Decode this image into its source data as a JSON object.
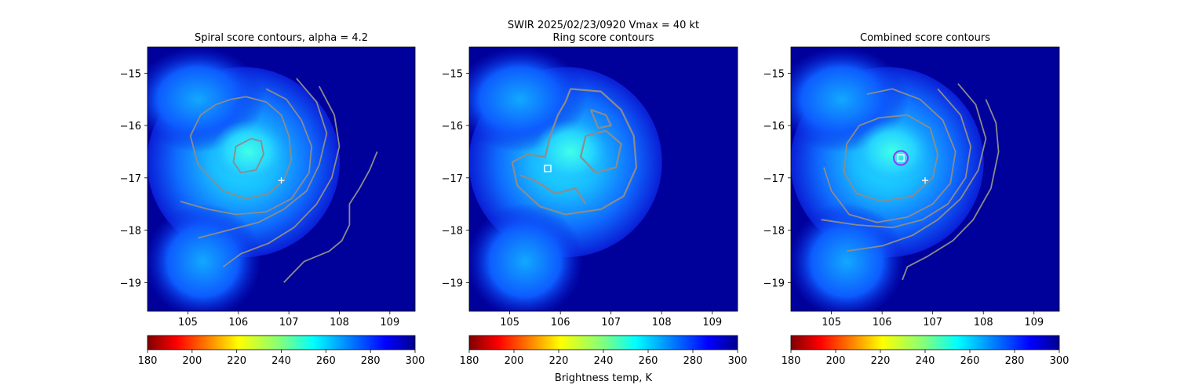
{
  "figure": {
    "suptitle_line1": "SWIR  2025/02/23/0920    Vmax = 40 kt",
    "colorbar_label": "Brightness temp, K"
  },
  "colors": {
    "contour": "#8c8c8c",
    "background_sea": "#00009a",
    "marker_white": "#ffffff",
    "combined_circle": "#9b30ff"
  },
  "colorbar": {
    "colormap": "jet_reversed",
    "ticks": [
      180,
      200,
      220,
      240,
      260,
      280,
      300
    ],
    "range": [
      180,
      300
    ]
  },
  "chart_data": [
    {
      "type": "heatmap",
      "title": "Spiral score contours, alpha =  4.2",
      "xlim": [
        104.2,
        109.5
      ],
      "ylim": [
        -19.55,
        -14.5
      ],
      "xticks": [
        105,
        106,
        107,
        108,
        109
      ],
      "yticks": [
        -15,
        -16,
        -17,
        -18,
        -19
      ],
      "markers": [
        {
          "kind": "cross",
          "x": 106.85,
          "y": -17.05
        }
      ],
      "contours": [
        [
          [
            106.25,
            -16.25
          ],
          [
            106.45,
            -16.3
          ],
          [
            106.5,
            -16.55
          ],
          [
            106.35,
            -16.85
          ],
          [
            106.05,
            -16.9
          ],
          [
            105.9,
            -16.7
          ],
          [
            105.95,
            -16.4
          ],
          [
            106.25,
            -16.25
          ]
        ],
        [
          [
            105.85,
            -15.5
          ],
          [
            106.15,
            -15.45
          ],
          [
            106.55,
            -15.55
          ],
          [
            106.85,
            -15.8
          ],
          [
            107.0,
            -16.2
          ],
          [
            107.05,
            -16.65
          ],
          [
            106.9,
            -17.05
          ],
          [
            106.6,
            -17.3
          ],
          [
            106.15,
            -17.4
          ],
          [
            105.7,
            -17.25
          ],
          [
            105.2,
            -16.75
          ],
          [
            105.05,
            -16.2
          ],
          [
            105.25,
            -15.8
          ],
          [
            105.55,
            -15.6
          ],
          [
            105.85,
            -15.5
          ]
        ],
        [
          [
            104.85,
            -17.45
          ],
          [
            105.4,
            -17.6
          ],
          [
            105.95,
            -17.7
          ],
          [
            106.55,
            -17.65
          ],
          [
            107.05,
            -17.4
          ],
          [
            107.4,
            -16.9
          ],
          [
            107.45,
            -16.4
          ],
          [
            107.25,
            -15.9
          ],
          [
            106.95,
            -15.5
          ],
          [
            106.55,
            -15.3
          ]
        ],
        [
          [
            105.2,
            -18.15
          ],
          [
            105.8,
            -18.0
          ],
          [
            106.4,
            -17.85
          ],
          [
            106.9,
            -17.6
          ],
          [
            107.35,
            -17.25
          ],
          [
            107.6,
            -16.75
          ],
          [
            107.75,
            -16.15
          ],
          [
            107.55,
            -15.55
          ],
          [
            107.15,
            -15.1
          ]
        ],
        [
          [
            105.7,
            -18.7
          ],
          [
            106.05,
            -18.45
          ],
          [
            106.6,
            -18.25
          ],
          [
            107.1,
            -17.95
          ],
          [
            107.55,
            -17.5
          ],
          [
            107.85,
            -17.0
          ],
          [
            108.0,
            -16.4
          ],
          [
            107.9,
            -15.8
          ],
          [
            107.6,
            -15.25
          ]
        ],
        [
          [
            106.9,
            -19.0
          ],
          [
            107.3,
            -18.6
          ],
          [
            107.8,
            -18.4
          ],
          [
            108.05,
            -18.2
          ],
          [
            108.2,
            -17.9
          ],
          [
            108.2,
            -17.5
          ],
          [
            108.4,
            -17.2
          ],
          [
            108.6,
            -16.85
          ],
          [
            108.75,
            -16.5
          ]
        ]
      ]
    },
    {
      "type": "heatmap",
      "title": "Ring score contours",
      "xlim": [
        104.2,
        109.5
      ],
      "ylim": [
        -19.55,
        -14.5
      ],
      "xticks": [
        105,
        106,
        107,
        108,
        109
      ],
      "yticks": [
        -15,
        -16,
        -17,
        -18,
        -19
      ],
      "markers": [
        {
          "kind": "square",
          "x": 105.75,
          "y": -16.82
        }
      ],
      "contours": [
        [
          [
            106.2,
            -15.3
          ],
          [
            106.8,
            -15.35
          ],
          [
            107.2,
            -15.7
          ],
          [
            107.45,
            -16.2
          ],
          [
            107.5,
            -16.8
          ],
          [
            107.25,
            -17.35
          ],
          [
            106.8,
            -17.6
          ],
          [
            106.1,
            -17.7
          ],
          [
            105.6,
            -17.55
          ],
          [
            105.15,
            -17.15
          ],
          [
            105.05,
            -16.7
          ],
          [
            105.35,
            -16.55
          ],
          [
            105.7,
            -16.6
          ],
          [
            105.8,
            -16.2
          ],
          [
            105.95,
            -15.8
          ],
          [
            106.1,
            -15.55
          ],
          [
            106.2,
            -15.3
          ]
        ],
        [
          [
            106.5,
            -16.2
          ],
          [
            106.9,
            -16.1
          ],
          [
            107.2,
            -16.35
          ],
          [
            107.1,
            -16.8
          ],
          [
            106.7,
            -16.9
          ],
          [
            106.4,
            -16.6
          ],
          [
            106.5,
            -16.2
          ]
        ],
        [
          [
            105.2,
            -16.95
          ],
          [
            105.5,
            -17.05
          ],
          [
            105.9,
            -17.3
          ],
          [
            106.3,
            -17.2
          ],
          [
            106.5,
            -17.5
          ]
        ],
        [
          [
            106.6,
            -15.7
          ],
          [
            106.9,
            -15.8
          ],
          [
            107.0,
            -16.0
          ],
          [
            106.75,
            -16.05
          ],
          [
            106.6,
            -15.7
          ]
        ]
      ]
    },
    {
      "type": "heatmap",
      "title": "Combined score contours",
      "xlim": [
        104.2,
        109.5
      ],
      "ylim": [
        -19.55,
        -14.5
      ],
      "xticks": [
        105,
        106,
        107,
        108,
        109
      ],
      "yticks": [
        -15,
        -16,
        -17,
        -18,
        -19
      ],
      "markers": [
        {
          "kind": "cross",
          "x": 106.85,
          "y": -17.05
        },
        {
          "kind": "square",
          "x": 106.37,
          "y": -16.62
        },
        {
          "kind": "circle",
          "x": 106.37,
          "y": -16.62
        }
      ],
      "contours": [
        [
          [
            105.95,
            -15.85
          ],
          [
            106.5,
            -15.8
          ],
          [
            106.95,
            -16.05
          ],
          [
            107.1,
            -16.55
          ],
          [
            107.0,
            -17.0
          ],
          [
            106.6,
            -17.35
          ],
          [
            106.0,
            -17.45
          ],
          [
            105.5,
            -17.3
          ],
          [
            105.25,
            -16.9
          ],
          [
            105.3,
            -16.35
          ],
          [
            105.55,
            -16.0
          ],
          [
            105.95,
            -15.85
          ]
        ],
        [
          [
            105.7,
            -15.4
          ],
          [
            106.2,
            -15.3
          ],
          [
            106.75,
            -15.5
          ],
          [
            107.2,
            -15.9
          ],
          [
            107.45,
            -16.5
          ],
          [
            107.35,
            -17.1
          ],
          [
            107.0,
            -17.5
          ],
          [
            106.5,
            -17.75
          ],
          [
            105.9,
            -17.85
          ],
          [
            105.35,
            -17.7
          ],
          [
            105.0,
            -17.25
          ],
          [
            104.85,
            -16.8
          ]
        ],
        [
          [
            104.8,
            -17.8
          ],
          [
            105.5,
            -17.9
          ],
          [
            106.2,
            -17.95
          ],
          [
            106.8,
            -17.8
          ],
          [
            107.3,
            -17.5
          ],
          [
            107.65,
            -17.0
          ],
          [
            107.75,
            -16.4
          ],
          [
            107.55,
            -15.8
          ],
          [
            107.1,
            -15.3
          ]
        ],
        [
          [
            105.3,
            -18.4
          ],
          [
            106.0,
            -18.3
          ],
          [
            106.6,
            -18.1
          ],
          [
            107.1,
            -17.8
          ],
          [
            107.55,
            -17.4
          ],
          [
            107.9,
            -16.85
          ],
          [
            108.05,
            -16.25
          ],
          [
            107.85,
            -15.6
          ],
          [
            107.5,
            -15.2
          ]
        ],
        [
          [
            106.4,
            -18.95
          ],
          [
            106.5,
            -18.7
          ],
          [
            106.9,
            -18.5
          ],
          [
            107.4,
            -18.2
          ],
          [
            107.8,
            -17.8
          ],
          [
            108.15,
            -17.2
          ],
          [
            108.3,
            -16.5
          ],
          [
            108.25,
            -15.95
          ],
          [
            108.05,
            -15.5
          ]
        ]
      ]
    }
  ]
}
